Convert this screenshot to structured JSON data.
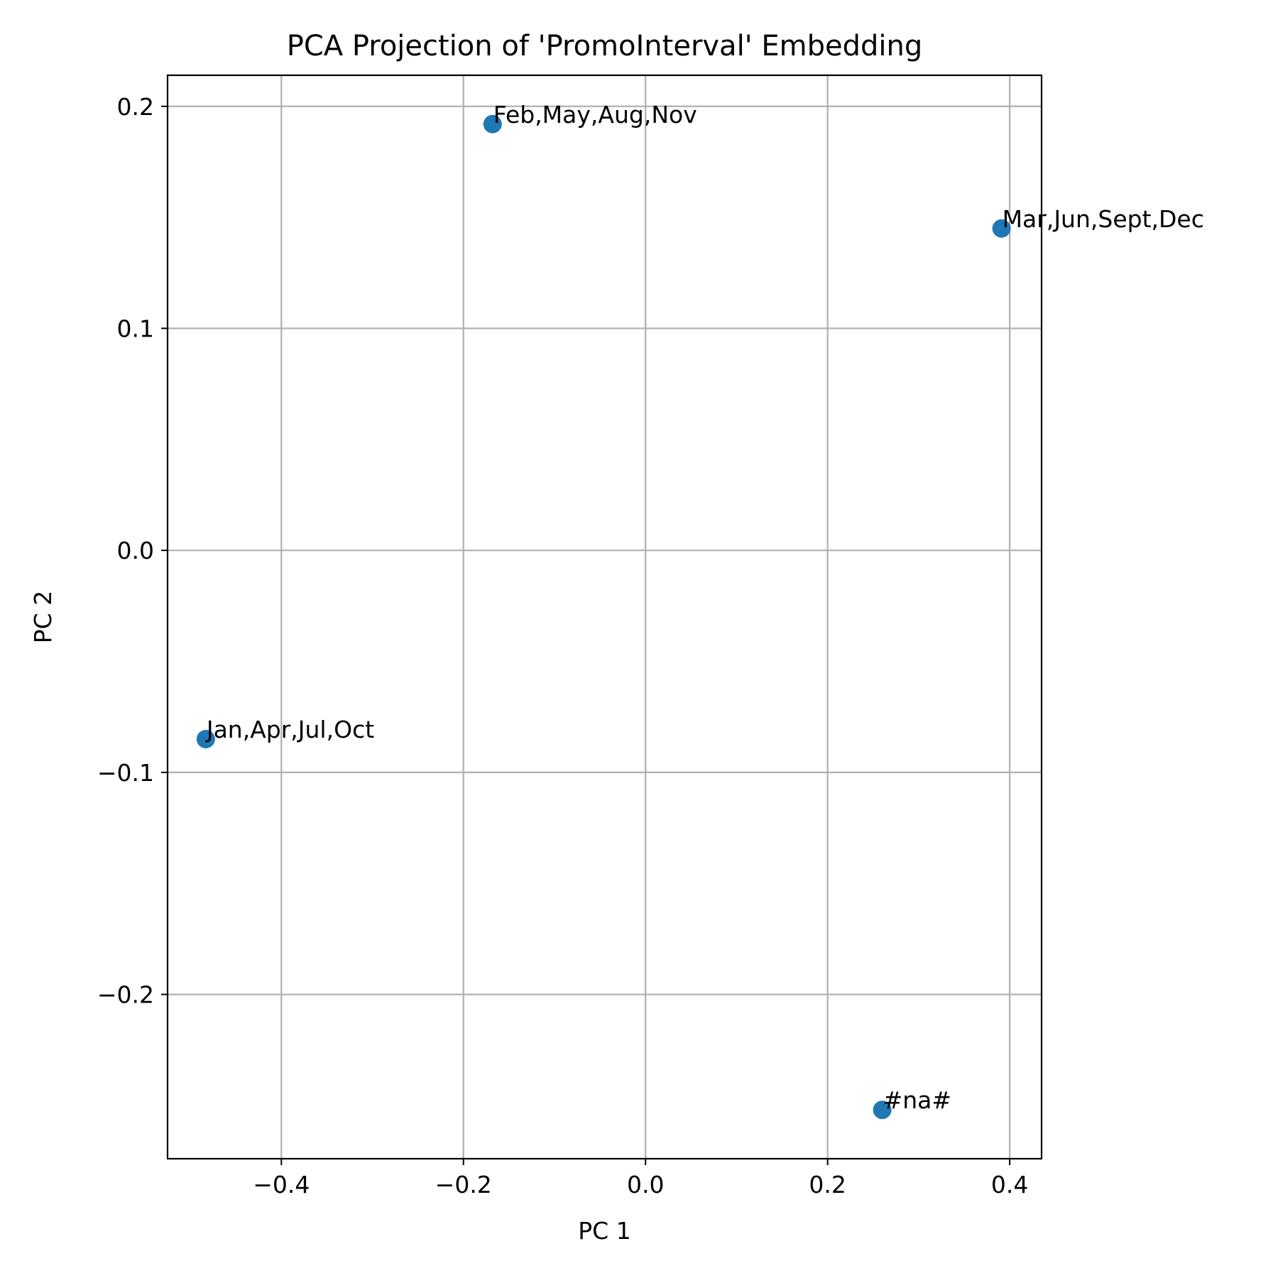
{
  "chart_data": {
    "type": "scatter",
    "title": "PCA Projection of 'PromoInterval' Embedding",
    "xlabel": "PC 1",
    "ylabel": "PC 2",
    "xlim": [
      -0.525,
      0.435
    ],
    "ylim": [
      -0.274,
      0.214
    ],
    "xticks": [
      -0.4,
      -0.2,
      0.0,
      0.2,
      0.4
    ],
    "xtick_labels": [
      "−0.4",
      "−0.2",
      "0.0",
      "0.2",
      "0.4"
    ],
    "yticks": [
      -0.2,
      -0.1,
      0.0,
      0.1,
      0.2
    ],
    "ytick_labels": [
      "−0.2",
      "−0.1",
      "0.0",
      "0.1",
      "0.2"
    ],
    "grid": true,
    "marker_color": "#1f77b4",
    "points": [
      {
        "x": -0.168,
        "y": 0.192,
        "label": "Feb,May,Aug,Nov"
      },
      {
        "x": 0.391,
        "y": 0.145,
        "label": "Mar,Jun,Sept,Dec"
      },
      {
        "x": -0.483,
        "y": -0.085,
        "label": "Jan,Apr,Jul,Oct"
      },
      {
        "x": 0.26,
        "y": -0.252,
        "label": "#na#"
      }
    ]
  }
}
